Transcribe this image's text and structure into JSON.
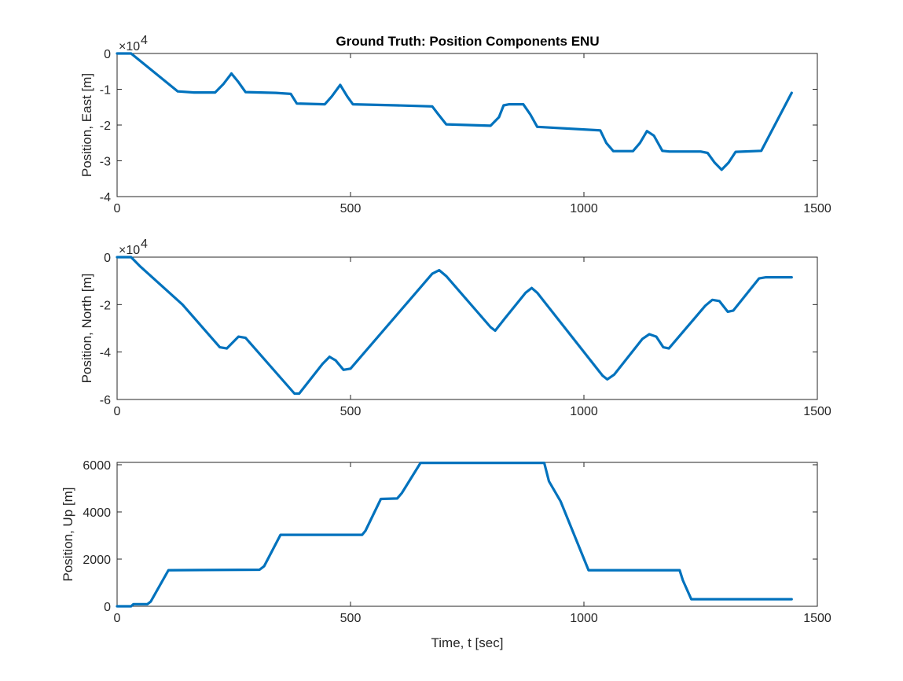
{
  "figure": {
    "title": "Ground Truth: Position Components ENU",
    "colors": {
      "line": "#0072BD",
      "axes": "#262626",
      "background": "#ffffff"
    }
  },
  "chart_data": [
    {
      "type": "line",
      "title": "Ground Truth: Position Components ENU",
      "xlabel": "",
      "ylabel": "Position, East [m]",
      "exponent_label": "×10",
      "exponent_power": "4",
      "xlim": [
        0,
        1500
      ],
      "ylim": [
        -4,
        0
      ],
      "x_ticks": [
        0,
        500,
        1000,
        1500
      ],
      "y_ticks": [
        -4,
        -3,
        -2,
        -1,
        0
      ],
      "x_tick_labels": [
        "0",
        "500",
        "1000",
        "1500"
      ],
      "y_tick_labels": [
        "-4",
        "-3",
        "-2",
        "-1",
        "0"
      ],
      "grid": false,
      "series": [
        {
          "x": [
            0,
            30,
            130,
            165,
            210,
            228,
            245,
            260,
            275,
            340,
            372,
            385,
            445,
            460,
            478,
            493,
            505,
            600,
            675,
            688,
            705,
            800,
            818,
            828,
            840,
            870,
            885,
            900,
            1035,
            1048,
            1063,
            1105,
            1120,
            1135,
            1150,
            1168,
            1183,
            1250,
            1265,
            1280,
            1295,
            1310,
            1325,
            1380,
            1445
          ],
          "y": [
            0,
            0,
            -1.06,
            -1.09,
            -1.09,
            -0.85,
            -0.56,
            -0.8,
            -1.08,
            -1.1,
            -1.13,
            -1.4,
            -1.42,
            -1.2,
            -0.88,
            -1.2,
            -1.42,
            -1.45,
            -1.48,
            -1.7,
            -1.98,
            -2.02,
            -1.78,
            -1.45,
            -1.42,
            -1.42,
            -1.7,
            -2.05,
            -2.15,
            -2.5,
            -2.73,
            -2.73,
            -2.5,
            -2.17,
            -2.3,
            -2.72,
            -2.74,
            -2.74,
            -2.78,
            -3.05,
            -3.25,
            -3.05,
            -2.75,
            -2.72,
            -1.1
          ]
        }
      ]
    },
    {
      "type": "line",
      "xlabel": "",
      "ylabel": "Position, North [m]",
      "exponent_label": "×10",
      "exponent_power": "4",
      "xlim": [
        0,
        1500
      ],
      "ylim": [
        -6,
        0
      ],
      "x_ticks": [
        0,
        500,
        1000,
        1500
      ],
      "y_ticks": [
        -6,
        -4,
        -2,
        0
      ],
      "x_tick_labels": [
        "0",
        "500",
        "1000",
        "1500"
      ],
      "y_tick_labels": [
        "-6",
        "-4",
        "-2",
        "0"
      ],
      "grid": false,
      "series": [
        {
          "x": [
            0,
            30,
            50,
            140,
            220,
            235,
            260,
            275,
            380,
            390,
            440,
            455,
            468,
            485,
            500,
            675,
            690,
            705,
            800,
            810,
            830,
            875,
            888,
            900,
            1040,
            1050,
            1065,
            1125,
            1140,
            1155,
            1170,
            1182,
            1260,
            1275,
            1290,
            1308,
            1320,
            1375,
            1390,
            1445
          ],
          "y": [
            0,
            0,
            -0.4,
            -2,
            -3.8,
            -3.85,
            -3.35,
            -3.4,
            -5.75,
            -5.75,
            -4.5,
            -4.2,
            -4.35,
            -4.75,
            -4.7,
            -0.7,
            -0.55,
            -0.8,
            -2.95,
            -3.1,
            -2.6,
            -1.5,
            -1.3,
            -1.5,
            -5,
            -5.15,
            -4.95,
            -3.45,
            -3.25,
            -3.35,
            -3.8,
            -3.85,
            -2.05,
            -1.8,
            -1.85,
            -2.3,
            -2.25,
            -0.9,
            -0.85,
            -0.85
          ]
        }
      ]
    },
    {
      "type": "line",
      "xlabel": "Time, t [sec]",
      "ylabel": "Position, Up [m]",
      "xlim": [
        0,
        1500
      ],
      "ylim": [
        0,
        6100
      ],
      "x_ticks": [
        0,
        500,
        1000,
        1500
      ],
      "y_ticks": [
        0,
        2000,
        4000,
        6000
      ],
      "x_tick_labels": [
        "0",
        "500",
        "1000",
        "1500"
      ],
      "y_tick_labels": [
        "0",
        "2000",
        "4000",
        "6000"
      ],
      "grid": false,
      "series": [
        {
          "x": [
            0,
            30,
            35,
            65,
            72,
            110,
            305,
            315,
            350,
            525,
            532,
            565,
            600,
            610,
            650,
            915,
            925,
            950,
            1010,
            1205,
            1212,
            1230,
            1445
          ],
          "y": [
            0,
            0,
            90,
            90,
            200,
            1530,
            1550,
            1700,
            3030,
            3030,
            3200,
            4550,
            4570,
            4800,
            6080,
            6080,
            5300,
            4450,
            1530,
            1530,
            1100,
            300,
            300
          ]
        }
      ]
    }
  ]
}
